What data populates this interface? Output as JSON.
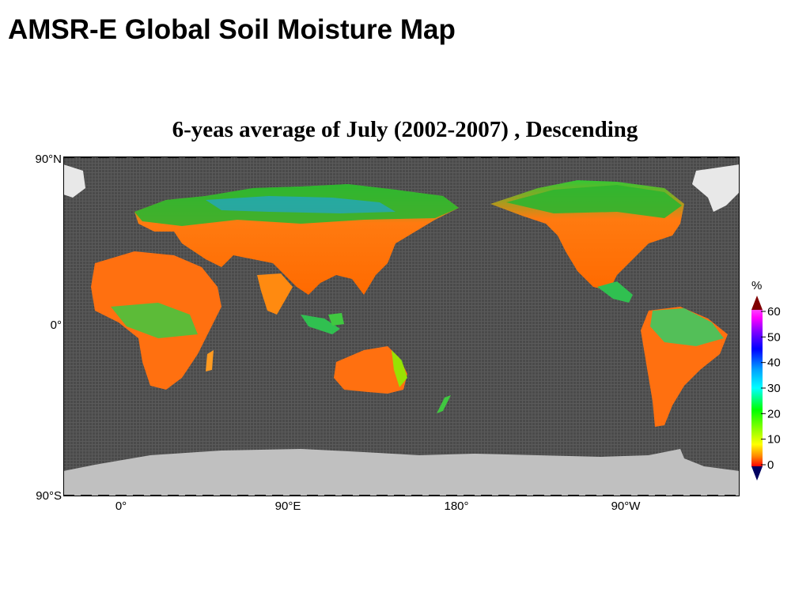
{
  "title": "AMSR-E Global Soil Moisture Map",
  "subtitle": "6-yeas average of July (2002-2007) , Descending",
  "map": {
    "lat_labels": [
      "90°N",
      "0°",
      "90°S"
    ],
    "lon_labels": [
      "0°",
      "90°E",
      "180°",
      "90°W"
    ],
    "ocean_color": "#4a4a4a",
    "ice_color": "#c0c0c0",
    "projection": "equirectangular, Pacific-centered"
  },
  "colorbar": {
    "unit": "%",
    "ticks": [
      "60",
      "50",
      "40",
      "30",
      "20",
      "10",
      "0"
    ],
    "colors": [
      "#ff0000",
      "#ff8000",
      "#ffff00",
      "#80ff00",
      "#00ff00",
      "#00ffff",
      "#00a0ff",
      "#0000ff",
      "#8000ff",
      "#ff00ff",
      "#800000"
    ]
  }
}
